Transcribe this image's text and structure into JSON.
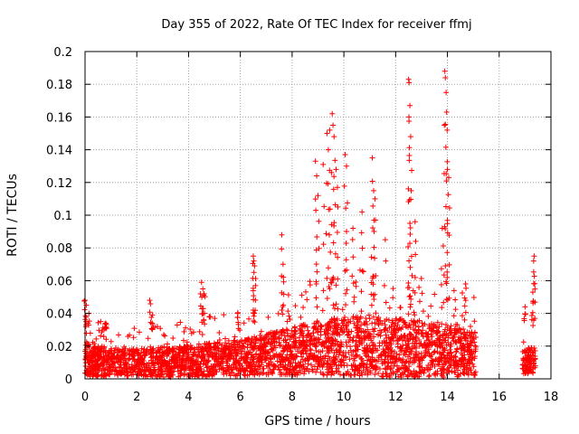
{
  "chart_data": {
    "type": "scatter",
    "title": "Day 355 of 2022, Rate Of TEC Index for receiver ffmj",
    "xlabel": "GPS time / hours",
    "ylabel": "ROTI / TECUs",
    "xlim": [
      0,
      18
    ],
    "ylim": [
      0,
      0.2
    ],
    "x_ticks": [
      0,
      2,
      4,
      6,
      8,
      10,
      12,
      14,
      16,
      18
    ],
    "x_tick_labels": [
      "0",
      "2",
      "4",
      "6",
      "8",
      "10",
      "12",
      "14",
      "16",
      "18"
    ],
    "y_ticks": [
      0,
      0.02,
      0.04,
      0.06,
      0.08,
      0.1,
      0.12,
      0.14,
      0.16,
      0.18,
      0.2
    ],
    "y_tick_labels": [
      "0",
      "0.02",
      "0.04",
      "0.06",
      "0.08",
      "0.1",
      "0.12",
      "0.14",
      "0.16",
      "0.18",
      "0.2"
    ],
    "grid": true,
    "marker": "plus",
    "marker_color": "#ff0000",
    "series": [
      {
        "name": "ROTI",
        "envelope": [
          {
            "x": 0.0,
            "base": 0.012,
            "spread": 0.016
          },
          {
            "x": 1.0,
            "base": 0.01,
            "spread": 0.012
          },
          {
            "x": 2.0,
            "base": 0.01,
            "spread": 0.012
          },
          {
            "x": 3.0,
            "base": 0.01,
            "spread": 0.013
          },
          {
            "x": 4.0,
            "base": 0.011,
            "spread": 0.014
          },
          {
            "x": 5.0,
            "base": 0.012,
            "spread": 0.015
          },
          {
            "x": 6.0,
            "base": 0.013,
            "spread": 0.016
          },
          {
            "x": 7.0,
            "base": 0.015,
            "spread": 0.018
          },
          {
            "x": 8.0,
            "base": 0.017,
            "spread": 0.021
          },
          {
            "x": 9.0,
            "base": 0.019,
            "spread": 0.024
          },
          {
            "x": 10.0,
            "base": 0.02,
            "spread": 0.026
          },
          {
            "x": 11.0,
            "base": 0.02,
            "spread": 0.026
          },
          {
            "x": 12.0,
            "base": 0.019,
            "spread": 0.026
          },
          {
            "x": 13.0,
            "base": 0.018,
            "spread": 0.025
          },
          {
            "x": 14.0,
            "base": 0.017,
            "spread": 0.023
          },
          {
            "x": 15.1,
            "base": 0.015,
            "spread": 0.019
          },
          {
            "x": 16.9,
            "base": 0.01,
            "spread": 0.01
          },
          {
            "x": 17.4,
            "base": 0.012,
            "spread": 0.012
          }
        ],
        "gaps": [
          [
            15.1,
            16.9
          ]
        ],
        "x_range": [
          0.0,
          17.4
        ],
        "spikes": [
          {
            "x": 0.0,
            "y": 0.048
          },
          {
            "x": 0.05,
            "y": 0.045
          },
          {
            "x": 0.15,
            "y": 0.04
          },
          {
            "x": 0.8,
            "y": 0.034
          },
          {
            "x": 2.5,
            "y": 0.048
          },
          {
            "x": 2.6,
            "y": 0.039
          },
          {
            "x": 4.5,
            "y": 0.059
          },
          {
            "x": 4.55,
            "y": 0.055
          },
          {
            "x": 4.6,
            "y": 0.052
          },
          {
            "x": 5.9,
            "y": 0.04
          },
          {
            "x": 6.5,
            "y": 0.075
          },
          {
            "x": 6.52,
            "y": 0.072
          },
          {
            "x": 6.55,
            "y": 0.069
          },
          {
            "x": 7.6,
            "y": 0.088
          },
          {
            "x": 7.65,
            "y": 0.07
          },
          {
            "x": 8.9,
            "y": 0.133
          },
          {
            "x": 8.95,
            "y": 0.124
          },
          {
            "x": 9.0,
            "y": 0.112
          },
          {
            "x": 9.2,
            "y": 0.131
          },
          {
            "x": 9.35,
            "y": 0.15
          },
          {
            "x": 9.4,
            "y": 0.14
          },
          {
            "x": 9.45,
            "y": 0.152
          },
          {
            "x": 9.55,
            "y": 0.162
          },
          {
            "x": 9.58,
            "y": 0.155
          },
          {
            "x": 9.62,
            "y": 0.148
          },
          {
            "x": 9.7,
            "y": 0.128
          },
          {
            "x": 9.75,
            "y": 0.117
          },
          {
            "x": 10.05,
            "y": 0.137
          },
          {
            "x": 10.1,
            "y": 0.13
          },
          {
            "x": 10.35,
            "y": 0.092
          },
          {
            "x": 10.7,
            "y": 0.102
          },
          {
            "x": 11.1,
            "y": 0.135
          },
          {
            "x": 11.15,
            "y": 0.115
          },
          {
            "x": 11.2,
            "y": 0.11
          },
          {
            "x": 11.6,
            "y": 0.085
          },
          {
            "x": 12.5,
            "y": 0.183
          },
          {
            "x": 12.52,
            "y": 0.181
          },
          {
            "x": 12.55,
            "y": 0.167
          },
          {
            "x": 12.58,
            "y": 0.148
          },
          {
            "x": 12.6,
            "y": 0.115
          },
          {
            "x": 12.75,
            "y": 0.096
          },
          {
            "x": 13.9,
            "y": 0.188
          },
          {
            "x": 13.92,
            "y": 0.184
          },
          {
            "x": 13.95,
            "y": 0.175
          },
          {
            "x": 13.97,
            "y": 0.163
          },
          {
            "x": 13.99,
            "y": 0.152
          },
          {
            "x": 14.0,
            "y": 0.128
          },
          {
            "x": 14.05,
            "y": 0.123
          },
          {
            "x": 13.8,
            "y": 0.092
          },
          {
            "x": 14.7,
            "y": 0.058
          },
          {
            "x": 17.0,
            "y": 0.044
          },
          {
            "x": 17.35,
            "y": 0.075
          },
          {
            "x": 17.33,
            "y": 0.072
          },
          {
            "x": 17.3,
            "y": 0.053
          }
        ]
      }
    ]
  }
}
